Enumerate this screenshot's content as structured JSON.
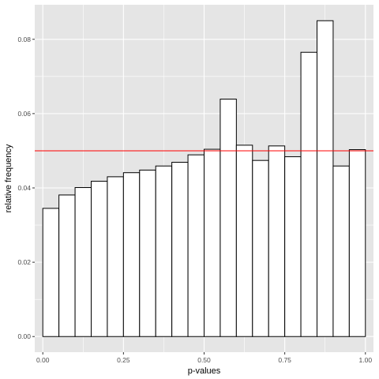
{
  "chart_data": {
    "type": "bar",
    "xlabel": "p-values",
    "ylabel": "relative frequency",
    "xlim": [
      -0.025,
      1.025
    ],
    "ylim": [
      -0.0042,
      0.0893
    ],
    "x_ticks": [
      0.0,
      0.25,
      0.5,
      0.75,
      1.0
    ],
    "x_tick_labels": [
      "0.00",
      "0.25",
      "0.50",
      "0.75",
      "1.00"
    ],
    "y_ticks": [
      0.0,
      0.02,
      0.04,
      0.06,
      0.08
    ],
    "y_tick_labels": [
      "0.00",
      "0.02",
      "0.04",
      "0.06",
      "0.08"
    ],
    "bin_edges": [
      0.0,
      0.05,
      0.1,
      0.15,
      0.2,
      0.25,
      0.3,
      0.35,
      0.4,
      0.45,
      0.5,
      0.55,
      0.6,
      0.65,
      0.7,
      0.75,
      0.8,
      0.85,
      0.9,
      0.95,
      1.0
    ],
    "values": [
      0.0345,
      0.0381,
      0.0401,
      0.0418,
      0.043,
      0.0441,
      0.0448,
      0.0459,
      0.0469,
      0.0489,
      0.0504,
      0.0639,
      0.0515,
      0.0474,
      0.0513,
      0.0484,
      0.0765,
      0.085,
      0.0459,
      0.0503
    ],
    "reference_line": {
      "y": 0.05,
      "color": "#ff0000"
    },
    "bar_fill": "#ffffff",
    "bar_stroke": "#000000",
    "panel_background": "#e5e5e5",
    "grid": true,
    "grid_color": "#ffffff"
  }
}
